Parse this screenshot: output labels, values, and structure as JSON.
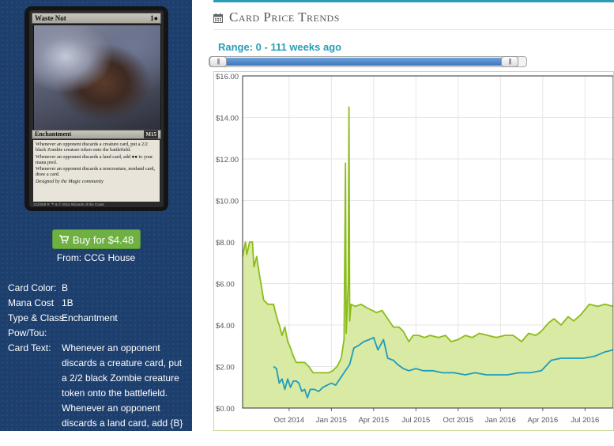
{
  "card": {
    "name": "Waste Not",
    "cost": "1●",
    "type_line": "Enchantment",
    "set_symbol": "M15",
    "rules": [
      "Whenever an opponent discards a creature card, put a 2/2 black Zombie creature token onto the battlefield.",
      "Whenever an opponent discards a land card, add ●● to your mana pool.",
      "Whenever an opponent discards a noncreature, nonland card, draw a card."
    ],
    "credit": "Designed by the Magic community",
    "footer": "122/269 R    ™ & © 2014 Wizards of the Coast"
  },
  "buy": {
    "label": "Buy for $4.48",
    "from": "From: CCG House"
  },
  "properties": [
    {
      "label": "Card Color:",
      "value": "B"
    },
    {
      "label": "Mana Cost",
      "value": "1B"
    },
    {
      "label": "Type & Class:",
      "value": "Enchantment"
    },
    {
      "label": "Pow/Tou:",
      "value": ""
    },
    {
      "label": "Card Text:",
      "value": "Whenever an opponent discards a creature card, put a 2/2 black Zombie creature token onto the battlefield. Whenever an opponent discards a land card, add {B}{B} to your mana pool."
    }
  ],
  "section": {
    "title": "Card Price Trends",
    "icon": "calendar-icon"
  },
  "range": {
    "label": "Range: 0 - 111 weeks ago",
    "handle_glyph": "|||",
    "selected_fraction": [
      0,
      1
    ]
  },
  "colors": {
    "accent": "#2a9db8",
    "sidebar": "#1d3f6e",
    "buy_button": "#6eb142",
    "series_fill": "#d8eaa3",
    "series_green": "#8cbc1c",
    "series_blue": "#1f9cbf"
  },
  "chart_data": {
    "type": "line",
    "title": "",
    "xlabel": "",
    "ylabel": "",
    "ylim": [
      0,
      16
    ],
    "y_ticks": [
      "$0.00",
      "$2.00",
      "$4.00",
      "$6.00",
      "$8.00",
      "$10.00",
      "$12.00",
      "$14.00",
      "$16.00"
    ],
    "x_ticks": [
      {
        "label": "Oct 2014",
        "t": 3.3
      },
      {
        "label": "Jan 2015",
        "t": 6.3
      },
      {
        "label": "Apr 2015",
        "t": 9.3
      },
      {
        "label": "Jul 2015",
        "t": 12.3
      },
      {
        "label": "Oct 2015",
        "t": 15.3
      },
      {
        "label": "Jan 2016",
        "t": 18.3
      },
      {
        "label": "Apr 2016",
        "t": 21.3
      },
      {
        "label": "Jul 2016",
        "t": 24.3
      }
    ],
    "xlim": [
      0,
      26.3
    ],
    "grid": true,
    "series": [
      {
        "name": "",
        "filled": true,
        "points": [
          [
            0,
            7.3
          ],
          [
            0.2,
            8.0
          ],
          [
            0.3,
            7.4
          ],
          [
            0.5,
            8.0
          ],
          [
            0.7,
            8.0
          ],
          [
            0.8,
            6.8
          ],
          [
            1.0,
            7.3
          ],
          [
            1.2,
            6.4
          ],
          [
            1.3,
            6.0
          ],
          [
            1.5,
            5.2
          ],
          [
            1.8,
            5.0
          ],
          [
            2.2,
            5.0
          ],
          [
            2.3,
            4.7
          ],
          [
            2.5,
            4.2
          ],
          [
            2.6,
            4.0
          ],
          [
            2.8,
            3.5
          ],
          [
            3.0,
            3.9
          ],
          [
            3.2,
            3.2
          ],
          [
            3.4,
            2.9
          ],
          [
            3.6,
            2.5
          ],
          [
            3.8,
            2.2
          ],
          [
            4.0,
            2.2
          ],
          [
            4.4,
            2.2
          ],
          [
            4.7,
            2.0
          ],
          [
            5.0,
            1.7
          ],
          [
            5.4,
            1.7
          ],
          [
            5.8,
            1.7
          ],
          [
            6.1,
            1.7
          ],
          [
            6.4,
            1.8
          ],
          [
            6.7,
            2.0
          ],
          [
            7.0,
            2.4
          ],
          [
            7.2,
            3.3
          ],
          [
            7.3,
            11.8
          ],
          [
            7.35,
            3.6
          ],
          [
            7.5,
            6.0
          ],
          [
            7.55,
            14.5
          ],
          [
            7.6,
            4.2
          ],
          [
            7.7,
            5.0
          ],
          [
            8.0,
            4.9
          ],
          [
            8.4,
            5.0
          ],
          [
            8.9,
            4.8
          ],
          [
            9.2,
            4.7
          ],
          [
            9.5,
            4.6
          ],
          [
            9.9,
            4.7
          ],
          [
            10.3,
            4.3
          ],
          [
            10.7,
            3.9
          ],
          [
            11.1,
            3.9
          ],
          [
            11.4,
            3.7
          ],
          [
            11.8,
            3.2
          ],
          [
            12.1,
            3.5
          ],
          [
            12.5,
            3.5
          ],
          [
            12.9,
            3.4
          ],
          [
            13.3,
            3.5
          ],
          [
            13.9,
            3.4
          ],
          [
            14.4,
            3.5
          ],
          [
            14.8,
            3.2
          ],
          [
            15.3,
            3.3
          ],
          [
            15.8,
            3.5
          ],
          [
            16.3,
            3.4
          ],
          [
            16.8,
            3.6
          ],
          [
            17.4,
            3.5
          ],
          [
            18.0,
            3.4
          ],
          [
            18.6,
            3.5
          ],
          [
            19.2,
            3.5
          ],
          [
            19.8,
            3.2
          ],
          [
            20.3,
            3.6
          ],
          [
            20.8,
            3.5
          ],
          [
            21.2,
            3.7
          ],
          [
            21.7,
            4.1
          ],
          [
            22.1,
            4.3
          ],
          [
            22.6,
            4.0
          ],
          [
            23.1,
            4.4
          ],
          [
            23.5,
            4.2
          ],
          [
            24.0,
            4.5
          ],
          [
            24.6,
            5.0
          ],
          [
            25.2,
            4.9
          ],
          [
            25.7,
            5.0
          ],
          [
            26.3,
            4.9
          ]
        ]
      },
      {
        "name": "",
        "filled": false,
        "points": [
          [
            2.2,
            2.0
          ],
          [
            2.4,
            1.9
          ],
          [
            2.6,
            1.2
          ],
          [
            2.8,
            1.4
          ],
          [
            3.0,
            0.9
          ],
          [
            3.2,
            1.4
          ],
          [
            3.4,
            1.0
          ],
          [
            3.6,
            1.3
          ],
          [
            3.8,
            1.3
          ],
          [
            4.0,
            1.2
          ],
          [
            4.2,
            0.8
          ],
          [
            4.4,
            0.9
          ],
          [
            4.6,
            0.5
          ],
          [
            4.8,
            0.9
          ],
          [
            5.1,
            0.9
          ],
          [
            5.4,
            0.8
          ],
          [
            5.7,
            1.0
          ],
          [
            6.0,
            1.1
          ],
          [
            6.3,
            1.2
          ],
          [
            6.6,
            1.1
          ],
          [
            7.0,
            1.5
          ],
          [
            7.3,
            1.8
          ],
          [
            7.6,
            2.1
          ],
          [
            7.9,
            2.9
          ],
          [
            8.2,
            3.0
          ],
          [
            8.6,
            3.2
          ],
          [
            9.0,
            3.3
          ],
          [
            9.3,
            3.4
          ],
          [
            9.6,
            2.8
          ],
          [
            10.0,
            3.3
          ],
          [
            10.3,
            2.4
          ],
          [
            10.7,
            2.3
          ],
          [
            11.0,
            2.1
          ],
          [
            11.4,
            1.9
          ],
          [
            11.8,
            1.8
          ],
          [
            12.3,
            1.9
          ],
          [
            12.8,
            1.8
          ],
          [
            13.5,
            1.8
          ],
          [
            14.2,
            1.7
          ],
          [
            15.0,
            1.7
          ],
          [
            15.8,
            1.6
          ],
          [
            16.5,
            1.7
          ],
          [
            17.3,
            1.6
          ],
          [
            18.1,
            1.6
          ],
          [
            18.8,
            1.6
          ],
          [
            19.6,
            1.7
          ],
          [
            20.4,
            1.7
          ],
          [
            21.2,
            1.8
          ],
          [
            21.9,
            2.3
          ],
          [
            22.6,
            2.4
          ],
          [
            23.4,
            2.4
          ],
          [
            24.2,
            2.4
          ],
          [
            25.0,
            2.5
          ],
          [
            25.7,
            2.7
          ],
          [
            26.3,
            2.8
          ]
        ]
      }
    ]
  }
}
